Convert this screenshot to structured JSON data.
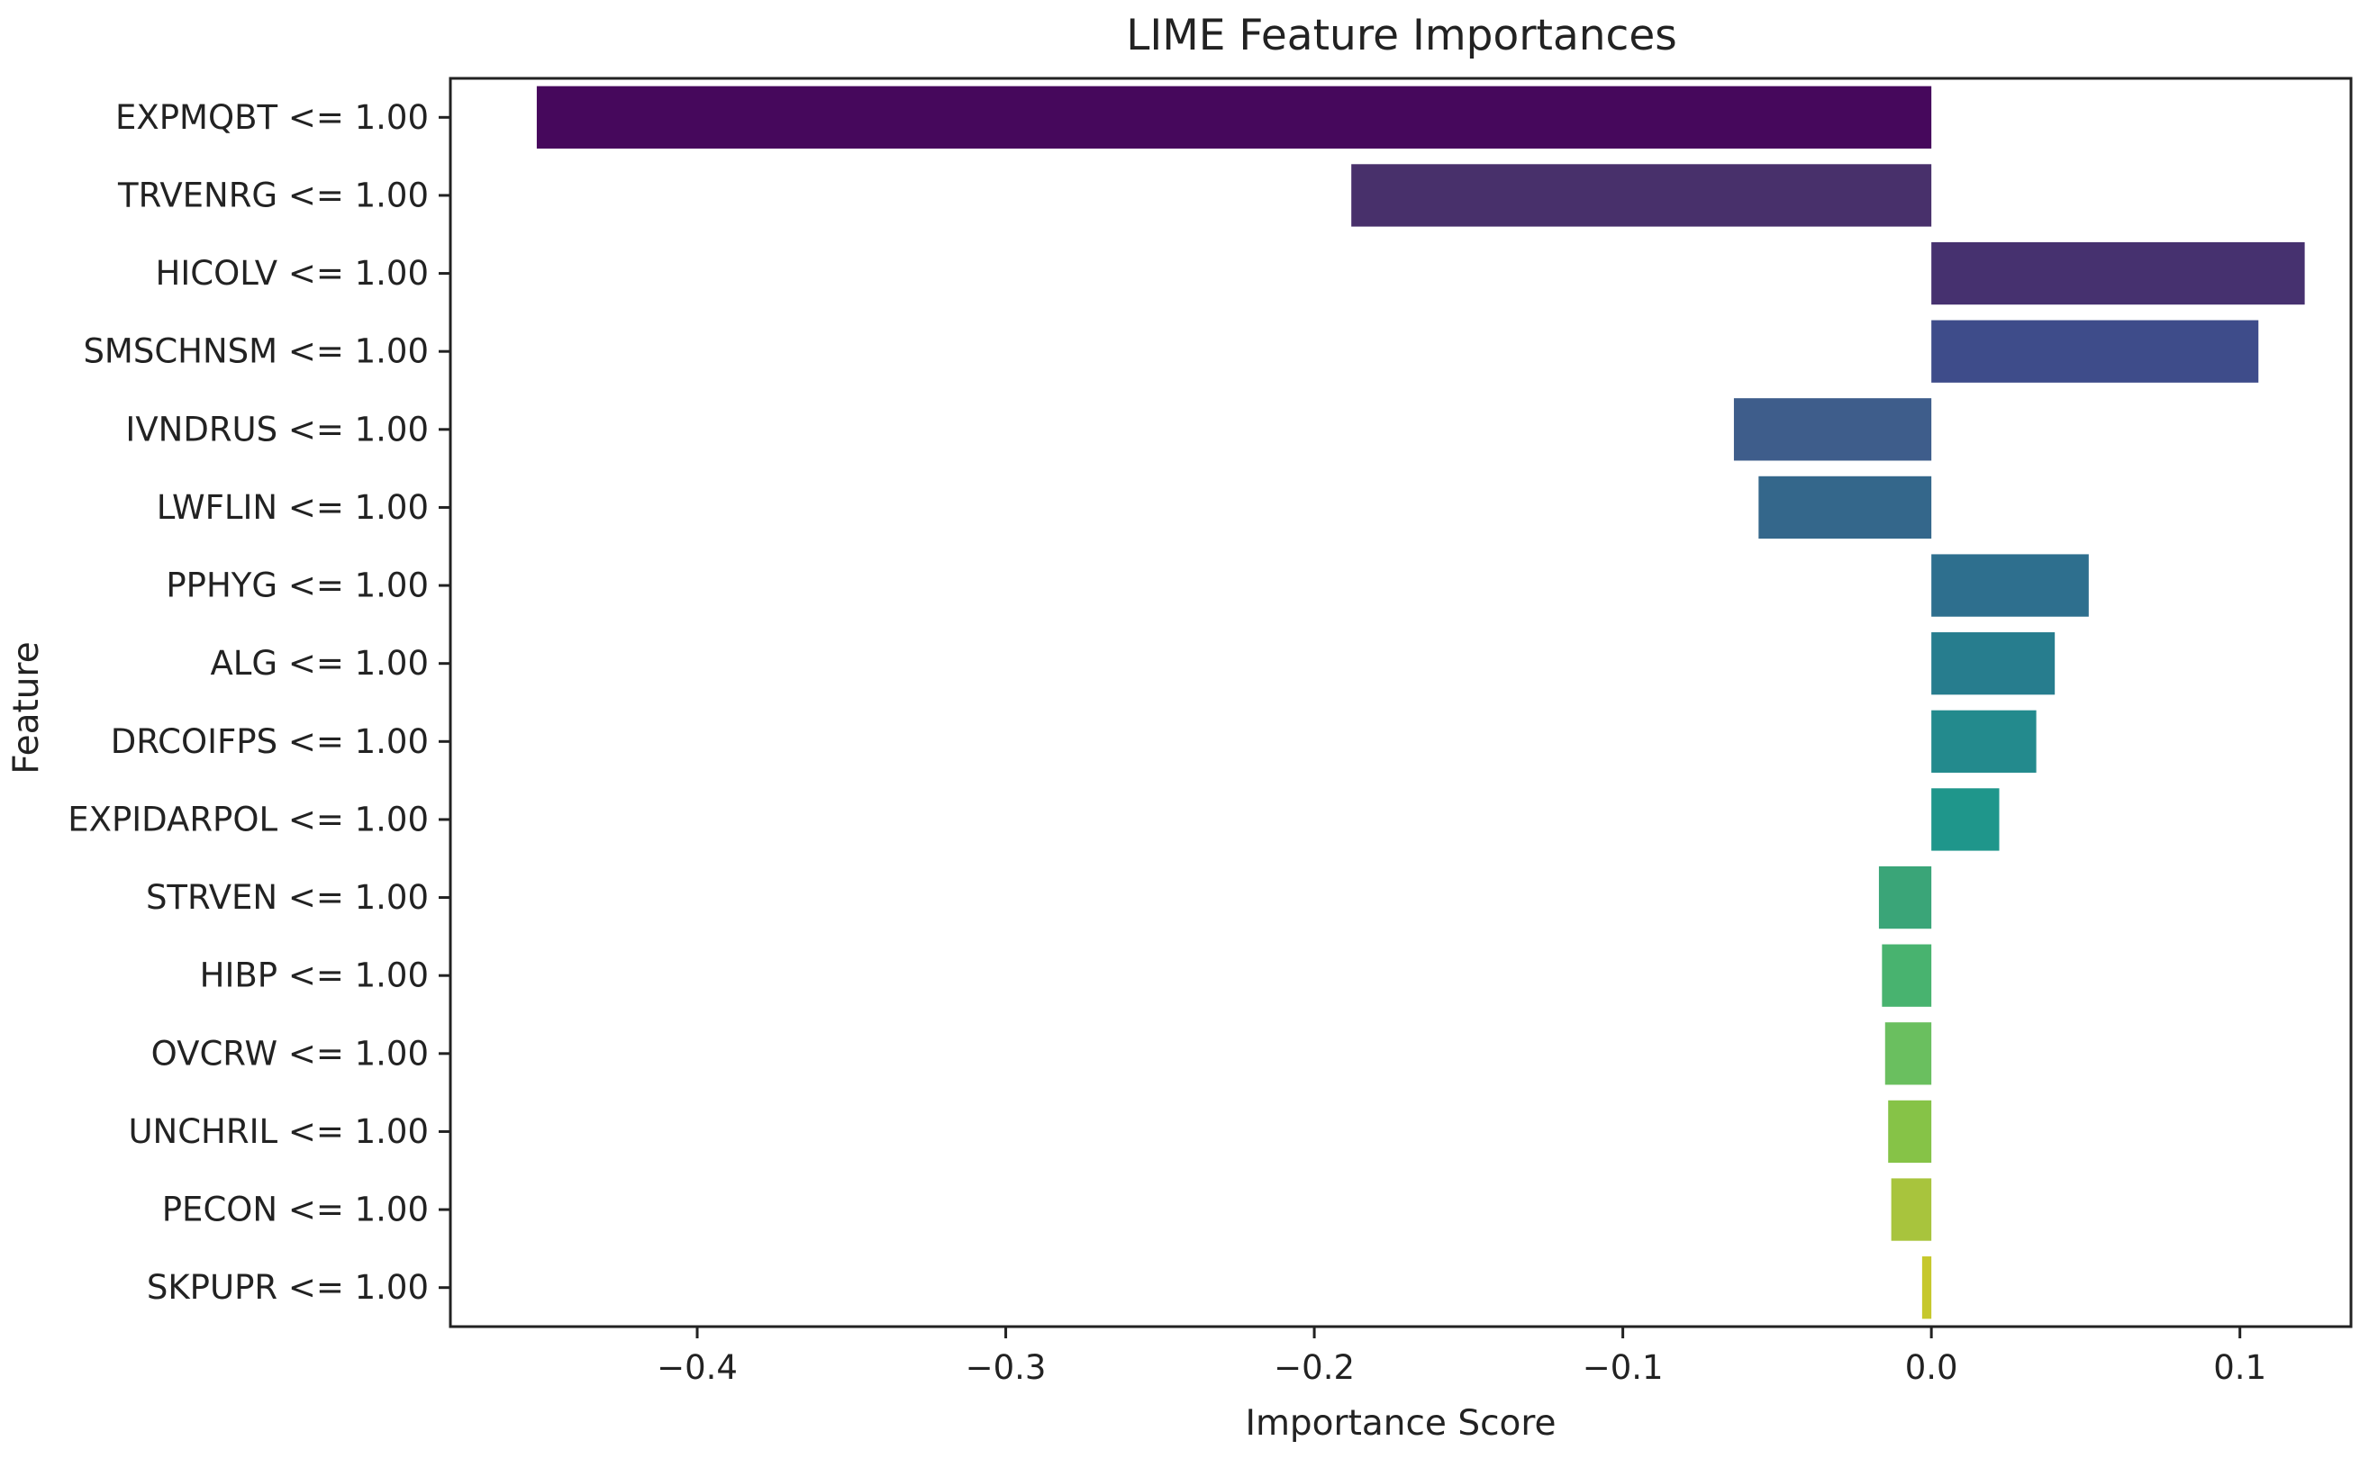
{
  "chart_data": {
    "type": "bar",
    "orientation": "horizontal",
    "title": "LIME Feature Importances",
    "xlabel": "Importance Score",
    "ylabel": "Feature",
    "xlim": [
      -0.48,
      0.136
    ],
    "xticks": [
      -0.4,
      -0.3,
      -0.2,
      -0.1,
      0.0,
      0.1
    ],
    "xtick_labels": [
      "−0.4",
      "−0.3",
      "−0.2",
      "−0.1",
      "0.0",
      "0.1"
    ],
    "grid": false,
    "categories": [
      "EXPMQBT <= 1.00",
      "TRVENRG <= 1.00",
      "HICOLV <= 1.00",
      "SMSCHNSM <= 1.00",
      "IVNDRUS <= 1.00",
      "LWFLIN <= 1.00",
      "PPHYG <= 1.00",
      "ALG <= 1.00",
      "DRCOIFPS <= 1.00",
      "EXPIDARPOL <= 1.00",
      "STRVEN <= 1.00",
      "HIBP <= 1.00",
      "OVCRW <= 1.00",
      "UNCHRIL <= 1.00",
      "PECON <= 1.00",
      "SKPUPR <= 1.00"
    ],
    "values": [
      -0.452,
      -0.188,
      0.121,
      0.106,
      -0.064,
      -0.056,
      0.051,
      0.04,
      0.034,
      0.022,
      -0.017,
      -0.016,
      -0.015,
      -0.014,
      -0.013,
      -0.003
    ],
    "colors": [
      "#46085c",
      "#48306b",
      "#46316f",
      "#3e4c8a",
      "#3e5d8b",
      "#34678b",
      "#2e6f8e",
      "#277d8e",
      "#238a8d",
      "#1f968b",
      "#3aa578",
      "#48b36f",
      "#6abf5f",
      "#86c347",
      "#a8c43d",
      "#c6c82c"
    ]
  }
}
